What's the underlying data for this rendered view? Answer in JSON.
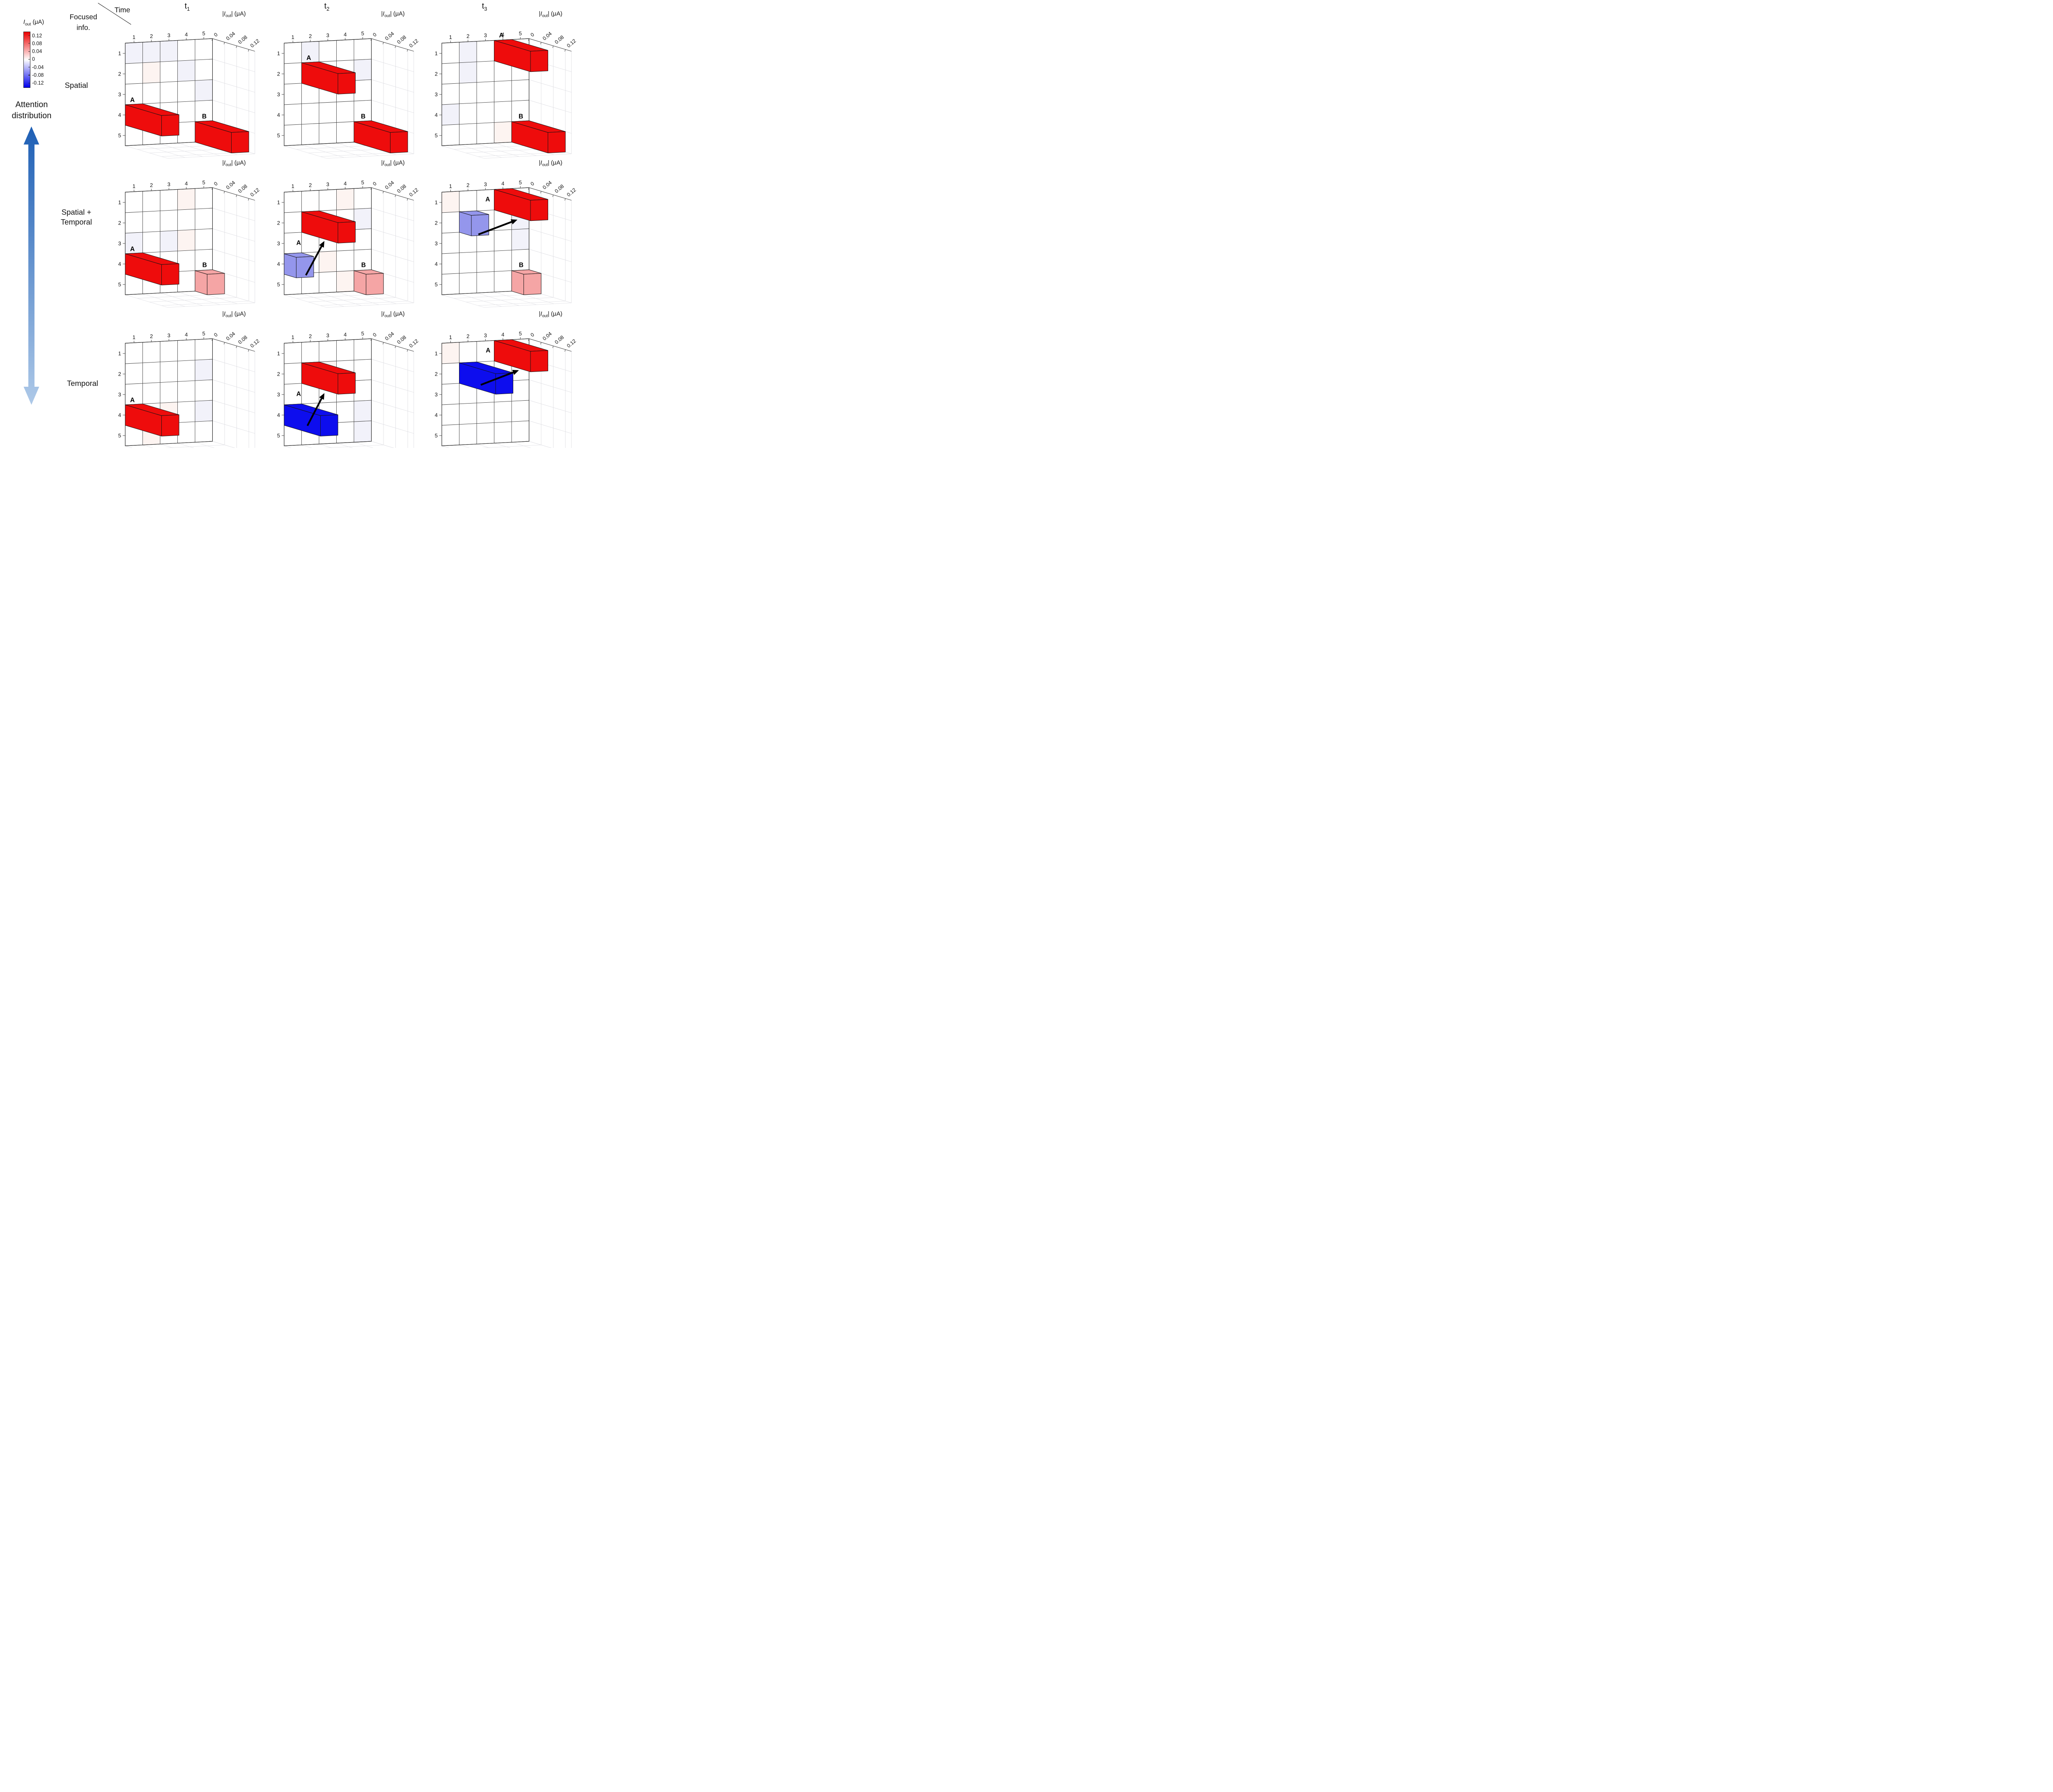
{
  "figure": {
    "type": "3d-bar-grid",
    "background": "#ffffff"
  },
  "colorbar": {
    "title": {
      "symbol": "I",
      "subscript": "out",
      "unit": " (μA)"
    },
    "ticks": [
      "0.12",
      "0.08",
      "0.04",
      "0",
      "-0.04",
      "-0.08",
      "-0.12"
    ],
    "range": [
      -0.14,
      0.14
    ],
    "top_color": "#ec0000",
    "mid_color": "#ffffff",
    "bottom_color": "#0000ec"
  },
  "sidebar": {
    "attention_lines": [
      "Attention",
      "distribution"
    ],
    "arrow_top_color": "#1e5fb5",
    "arrow_bottom_color": "#aec9e8"
  },
  "header": {
    "axis_top": "Time",
    "axis_left_lines": [
      "Focused",
      "info."
    ],
    "columns": [
      {
        "base": "t",
        "sub": "1"
      },
      {
        "base": "t",
        "sub": "2"
      },
      {
        "base": "t",
        "sub": "3"
      }
    ]
  },
  "rows": [
    {
      "label_lines": [
        "Spatial"
      ]
    },
    {
      "label_lines": [
        "Spatial +",
        "Temporal"
      ]
    },
    {
      "label_lines": [
        "Temporal"
      ]
    }
  ],
  "axis": {
    "col_ticks": [
      "1",
      "2",
      "3",
      "4",
      "5"
    ],
    "row_ticks": [
      "1",
      "2",
      "3",
      "4",
      "5"
    ],
    "z_ticks": [
      "0",
      "0.04",
      "0.08",
      "0.12"
    ],
    "z_tick_values": [
      0,
      0.04,
      0.08,
      0.12
    ],
    "z_max": 0.14,
    "z_title": {
      "pre": "|",
      "symbol": "I",
      "subscript": "out",
      "post": "| (μA)"
    }
  },
  "palette": {
    "red": "#ee0c0c",
    "pink": "#f5a5a5",
    "periwinkle": "#9496ec",
    "blue": "#0d0dee",
    "lavender_tint": "#f2f2fa",
    "pink_tint": "#fdf4f1"
  },
  "chart_data": [
    {
      "id": "spatial-t1",
      "focused_info": "Spatial",
      "time": "t1",
      "bars": [
        {
          "name": "A",
          "row": 4,
          "col": 1,
          "i_out": 0.12,
          "length": 0.12,
          "color_key": "red",
          "label": "A",
          "label_pos": [
            0.28,
            2.88
          ]
        },
        {
          "name": "B",
          "row": 5,
          "col": 5,
          "i_out": 0.12,
          "length": 0.12,
          "color_key": "red",
          "label": "B",
          "label_pos": [
            4.4,
            3.86
          ]
        }
      ],
      "arrow": null,
      "faint_cells": [
        [
          1,
          1,
          "lavender"
        ],
        [
          1,
          2,
          "lavender"
        ],
        [
          1,
          3,
          "lavender"
        ],
        [
          2,
          2,
          "pink"
        ],
        [
          2,
          4,
          "lavender"
        ],
        [
          3,
          5,
          "lavender"
        ]
      ]
    },
    {
      "id": "spatial-t2",
      "focused_info": "Spatial",
      "time": "t2",
      "bars": [
        {
          "name": "A",
          "row": 2,
          "col": 2,
          "i_out": 0.12,
          "length": 0.12,
          "color_key": "red",
          "label": "A",
          "label_pos": [
            1.28,
            0.88
          ]
        },
        {
          "name": "B",
          "row": 5,
          "col": 5,
          "i_out": 0.12,
          "length": 0.12,
          "color_key": "red",
          "label": "B",
          "label_pos": [
            4.4,
            3.86
          ]
        }
      ],
      "arrow": null,
      "faint_cells": [
        [
          1,
          2,
          "lavender"
        ],
        [
          2,
          5,
          "lavender"
        ]
      ]
    },
    {
      "id": "spatial-t3",
      "focused_info": "Spatial",
      "time": "t3",
      "bars": [
        {
          "name": "A",
          "row": 1,
          "col": 4,
          "i_out": 0.12,
          "length": 0.12,
          "color_key": "red",
          "label": "A",
          "label_pos": [
            3.28,
            -0.14
          ]
        },
        {
          "name": "B",
          "row": 5,
          "col": 5,
          "i_out": 0.12,
          "length": 0.12,
          "color_key": "red",
          "label": "B",
          "label_pos": [
            4.4,
            3.86
          ]
        }
      ],
      "arrow": null,
      "faint_cells": [
        [
          1,
          2,
          "lavender"
        ],
        [
          2,
          2,
          "lavender"
        ],
        [
          4,
          1,
          "lavender"
        ],
        [
          5,
          4,
          "pink"
        ]
      ]
    },
    {
      "id": "spatial-temporal-t1",
      "focused_info": "Spatial + Temporal",
      "time": "t1",
      "bars": [
        {
          "name": "A",
          "row": 4,
          "col": 1,
          "i_out": 0.12,
          "length": 0.12,
          "color_key": "red",
          "label": "A",
          "label_pos": [
            0.28,
            2.88
          ]
        },
        {
          "name": "B",
          "row": 5,
          "col": 5,
          "i_out": 0.04,
          "length": 0.04,
          "color_key": "pink",
          "label": "B",
          "label_pos": [
            4.42,
            3.84
          ]
        }
      ],
      "arrow": null,
      "faint_cells": [
        [
          1,
          4,
          "pink"
        ],
        [
          3,
          1,
          "lavender"
        ],
        [
          3,
          3,
          "lavender"
        ],
        [
          3,
          4,
          "pink"
        ]
      ]
    },
    {
      "id": "spatial-temporal-t2",
      "focused_info": "Spatial + Temporal",
      "time": "t2",
      "bars": [
        {
          "name": "previous-focus",
          "row": 4,
          "col": 1,
          "i_out": -0.04,
          "length": 0.04,
          "color_key": "periwinkle",
          "label": null
        },
        {
          "name": "A",
          "row": 2,
          "col": 2,
          "i_out": 0.12,
          "length": 0.12,
          "color_key": "red",
          "label": "A",
          "label_pos": [
            0.7,
            2.6
          ]
        },
        {
          "name": "B",
          "row": 5,
          "col": 5,
          "i_out": 0.04,
          "length": 0.04,
          "color_key": "pink",
          "label": "B",
          "label_pos": [
            4.42,
            3.84
          ]
        }
      ],
      "arrow": {
        "from": [
          0.9,
          4.0,
          0.02
        ],
        "to": [
          1.7,
          2.3,
          0.035
        ]
      },
      "faint_cells": [
        [
          1,
          4,
          "pink"
        ],
        [
          2,
          5,
          "lavender"
        ],
        [
          4,
          3,
          "pink"
        ],
        [
          5,
          4,
          "pink"
        ]
      ]
    },
    {
      "id": "spatial-temporal-t3",
      "focused_info": "Spatial + Temporal",
      "time": "t3",
      "bars": [
        {
          "name": "previous-focus",
          "row": 2,
          "col": 2,
          "i_out": -0.04,
          "length": 0.04,
          "color_key": "periwinkle",
          "label": null
        },
        {
          "name": "A",
          "row": 1,
          "col": 4,
          "i_out": 0.12,
          "length": 0.12,
          "color_key": "red",
          "label": "A",
          "label_pos": [
            2.5,
            0.56
          ]
        },
        {
          "name": "B",
          "row": 5,
          "col": 5,
          "i_out": 0.04,
          "length": 0.04,
          "color_key": "pink",
          "label": "B",
          "label_pos": [
            4.42,
            3.84
          ]
        }
      ],
      "arrow": {
        "from": [
          1.75,
          2.05,
          0.02
        ],
        "to": [
          3.55,
          1.3,
          0.045
        ]
      },
      "faint_cells": [
        [
          1,
          1,
          "pink"
        ],
        [
          2,
          5,
          "lavender"
        ],
        [
          3,
          5,
          "lavender"
        ]
      ]
    },
    {
      "id": "temporal-t1",
      "focused_info": "Temporal",
      "time": "t1",
      "bars": [
        {
          "name": "A",
          "row": 4,
          "col": 1,
          "i_out": 0.12,
          "length": 0.12,
          "color_key": "red",
          "label": "A",
          "label_pos": [
            0.28,
            2.88
          ]
        }
      ],
      "arrow": null,
      "faint_cells": [
        [
          2,
          5,
          "lavender"
        ],
        [
          4,
          3,
          "pink"
        ],
        [
          5,
          2,
          "pink"
        ],
        [
          4,
          5,
          "lavender"
        ]
      ]
    },
    {
      "id": "temporal-t2",
      "focused_info": "Temporal",
      "time": "t2",
      "bars": [
        {
          "name": "previous-focus",
          "row": 4,
          "col": 1,
          "i_out": -0.12,
          "length": 0.12,
          "color_key": "blue",
          "label": null
        },
        {
          "name": "A",
          "row": 2,
          "col": 2,
          "i_out": 0.12,
          "length": 0.12,
          "color_key": "red",
          "label": "A",
          "label_pos": [
            0.7,
            2.6
          ]
        }
      ],
      "arrow": {
        "from": [
          0.9,
          3.95,
          0.025
        ],
        "to": [
          1.7,
          2.35,
          0.035
        ]
      },
      "faint_cells": [
        [
          2,
          3,
          "pink"
        ],
        [
          4,
          5,
          "lavender"
        ],
        [
          5,
          5,
          "lavender"
        ]
      ]
    },
    {
      "id": "temporal-t3",
      "focused_info": "Temporal",
      "time": "t3",
      "bars": [
        {
          "name": "previous-focus",
          "row": 2,
          "col": 2,
          "i_out": -0.12,
          "length": 0.12,
          "color_key": "blue",
          "label": null
        },
        {
          "name": "A",
          "row": 1,
          "col": 4,
          "i_out": 0.12,
          "length": 0.12,
          "color_key": "red",
          "label": "A",
          "label_pos": [
            2.52,
            0.56
          ]
        }
      ],
      "arrow": {
        "from": [
          1.8,
          2.0,
          0.025
        ],
        "to": [
          3.55,
          1.25,
          0.05
        ]
      },
      "faint_cells": [
        [
          1,
          1,
          "pink"
        ]
      ]
    }
  ]
}
